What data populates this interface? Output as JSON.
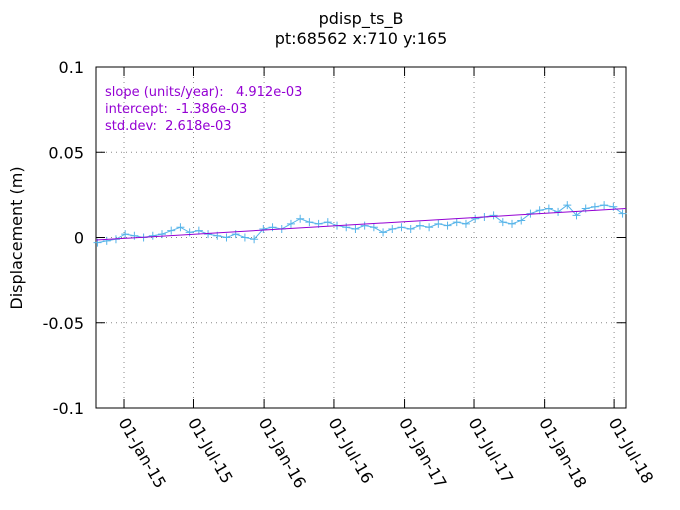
{
  "chart_data": {
    "type": "line",
    "title": "pdisp_ts_B",
    "subtitle": "pt:68562  x:710  y:165",
    "y_label": "Displacement (m)",
    "annotations": [
      "slope (units/year):   4.912e-03",
      "intercept:  -1.386e-03",
      "std.dev:  2.618e-03"
    ],
    "annotation_color": "#9400d3",
    "x": [
      "2014-10-24",
      "2014-11-17",
      "2014-12-11",
      "2015-01-04",
      "2015-01-28",
      "2015-02-21",
      "2015-03-17",
      "2015-04-10",
      "2015-05-04",
      "2015-05-28",
      "2015-06-21",
      "2015-07-15",
      "2015-08-08",
      "2015-09-01",
      "2015-09-25",
      "2015-10-19",
      "2015-11-12",
      "2015-12-06",
      "2015-12-30",
      "2016-01-23",
      "2016-02-16",
      "2016-03-11",
      "2016-04-04",
      "2016-04-28",
      "2016-05-22",
      "2016-06-15",
      "2016-07-09",
      "2016-08-02",
      "2016-08-26",
      "2016-09-19",
      "2016-10-13",
      "2016-11-06",
      "2016-11-30",
      "2016-12-24",
      "2017-01-17",
      "2017-02-10",
      "2017-03-06",
      "2017-03-30",
      "2017-04-23",
      "2017-05-17",
      "2017-06-10",
      "2017-07-04",
      "2017-07-28",
      "2017-08-21",
      "2017-09-14",
      "2017-10-08",
      "2017-11-01",
      "2017-11-25",
      "2017-12-19",
      "2018-01-12",
      "2018-02-05",
      "2018-03-01",
      "2018-03-25",
      "2018-04-18",
      "2018-05-12",
      "2018-06-05",
      "2018-06-29",
      "2018-07-23"
    ],
    "series": [
      {
        "color": "#56b4e9",
        "values": [
          -0.003,
          -0.002,
          -0.001,
          0.002,
          0.001,
          0.0,
          0.001,
          0.002,
          0.004,
          0.006,
          0.003,
          0.004,
          0.002,
          0.001,
          0.0,
          0.002,
          0.0,
          -0.001,
          0.005,
          0.006,
          0.005,
          0.008,
          0.011,
          0.009,
          0.008,
          0.009,
          0.007,
          0.006,
          0.005,
          0.007,
          0.006,
          0.003,
          0.005,
          0.006,
          0.005,
          0.007,
          0.006,
          0.008,
          0.007,
          0.009,
          0.008,
          0.011,
          0.012,
          0.013,
          0.009,
          0.008,
          0.01,
          0.014,
          0.016,
          0.017,
          0.015,
          0.019,
          0.013,
          0.017,
          0.018,
          0.019,
          0.018,
          0.014
        ]
      }
    ],
    "fit": {
      "color": "#9400d3",
      "x": [
        "2014-10-20",
        "2018-08-01"
      ],
      "values": [
        -0.0015,
        0.017
      ]
    },
    "xlim": [
      "2014-10-20",
      "2018-08-01"
    ],
    "xticks": [
      {
        "value": "2015-01-01",
        "label": "01-Jan-15"
      },
      {
        "value": "2015-07-01",
        "label": "01-Jul-15"
      },
      {
        "value": "2016-01-01",
        "label": "01-Jan-16"
      },
      {
        "value": "2016-07-01",
        "label": "01-Jul-16"
      },
      {
        "value": "2017-01-01",
        "label": "01-Jan-17"
      },
      {
        "value": "2017-07-01",
        "label": "01-Jul-17"
      },
      {
        "value": "2018-01-01",
        "label": "01-Jan-18"
      },
      {
        "value": "2018-07-01",
        "label": "01-Jul-18"
      }
    ],
    "ylim": [
      -0.1,
      0.1
    ],
    "yticks": [
      -0.1,
      -0.05,
      0,
      0.05,
      0.1
    ],
    "grid": true
  }
}
